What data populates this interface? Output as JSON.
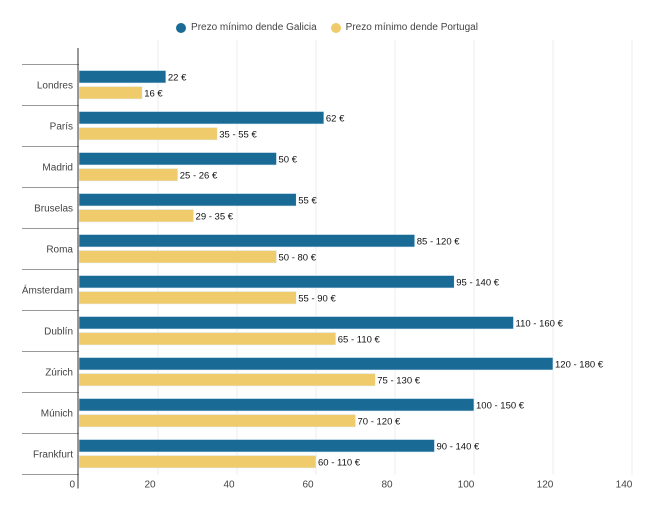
{
  "chart_data": {
    "type": "bar",
    "orientation": "horizontal",
    "title": "",
    "xlabel": "",
    "ylabel": "",
    "xlim": [
      0,
      140
    ],
    "x_ticks": [
      0,
      20,
      40,
      60,
      80,
      100,
      120,
      140
    ],
    "grid": true,
    "legend_position": "top-center",
    "categories": [
      "Londres",
      "París",
      "Madrid",
      "Bruselas",
      "Roma",
      "Ámsterdam",
      "Dublín",
      "Zúrich",
      "Múnich",
      "Frankfurt"
    ],
    "series": [
      {
        "name": "Prezo mínimo dende Galicia",
        "color": "#1a6a96",
        "values": [
          22,
          62,
          50,
          55,
          85,
          95,
          110,
          120,
          100,
          90
        ],
        "labels": [
          "22 €",
          "62 €",
          "50 €",
          "55 €",
          "85 - 120 €",
          "95 - 140 €",
          "110 - 160 €",
          "120 - 180 €",
          "100 - 150 €",
          "90 - 140 €"
        ]
      },
      {
        "name": "Prezo mínimo dende Portugal",
        "color": "#efcb6b",
        "values": [
          16,
          35,
          25,
          29,
          50,
          55,
          65,
          75,
          70,
          60
        ],
        "labels": [
          "16 €",
          "35 - 55 €",
          "25 - 26 €",
          "29 - 35 €",
          "50 - 80 €",
          "55 - 90 €",
          "65 - 110 €",
          "75 - 130 €",
          "70 - 120 €",
          "60 - 110 €"
        ]
      }
    ]
  }
}
